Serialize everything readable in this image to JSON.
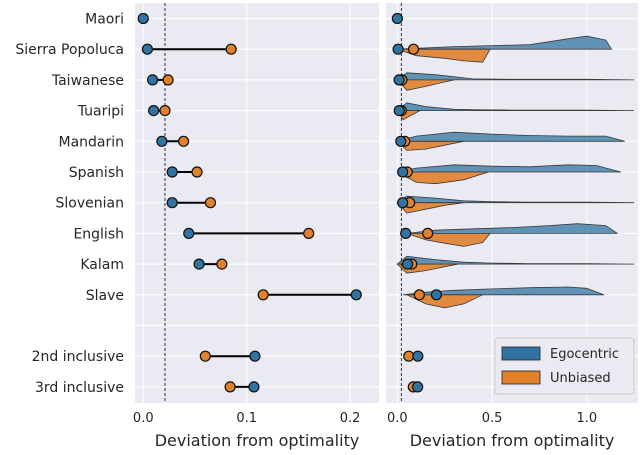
{
  "chart_data": [
    {
      "type": "dumbbell",
      "categories": [
        "Maori",
        "Sierra Popoluca",
        "Taiwanese",
        "Tuaripi",
        "Mandarin",
        "Spanish",
        "Slovenian",
        "English",
        "Kalam",
        "Slave",
        "",
        "2nd inclusive",
        "3rd inclusive"
      ],
      "series": [
        {
          "name": "Egocentric",
          "color": "#3274a1",
          "values": [
            0.0,
            0.004,
            0.009,
            0.01,
            0.018,
            0.028,
            0.028,
            0.044,
            0.054,
            0.206,
            null,
            0.108,
            0.107
          ]
        },
        {
          "name": "Unbiased",
          "color": "#e1812c",
          "values": [
            null,
            0.085,
            0.024,
            0.021,
            0.039,
            0.052,
            0.065,
            0.16,
            0.076,
            0.116,
            null,
            0.06,
            0.084
          ]
        }
      ],
      "reference_line": 0.021,
      "xlim": [
        -0.008,
        0.228
      ],
      "xticks": [
        "0.0",
        "0.1",
        "0.2"
      ],
      "xtick_values": [
        0.0,
        0.1,
        0.2
      ],
      "xlabel": "Deviation from optimality",
      "grid": true
    },
    {
      "type": "violin",
      "categories": [
        "Maori",
        "Sierra Popoluca",
        "Taiwanese",
        "Tuaripi",
        "Mandarin",
        "Spanish",
        "Slovenian",
        "English",
        "Kalam",
        "Slave",
        "",
        "2nd inclusive",
        "3rd inclusive"
      ],
      "series": [
        {
          "name": "Egocentric",
          "color": "#3274a1",
          "markers": [
            0.0,
            0.004,
            0.009,
            0.01,
            0.018,
            0.028,
            0.028,
            0.044,
            0.054,
            0.206,
            null,
            0.108,
            0.107
          ],
          "violins": [
            null,
            {
              "x": [
                0.0,
                0.3,
                0.5,
                0.7,
                0.9,
                1.0,
                1.1,
                1.13
              ],
              "density": [
                0.0,
                0.2,
                0.28,
                0.35,
                0.8,
                1.0,
                0.7,
                0.0
              ]
            },
            {
              "x": [
                0.0,
                0.05,
                0.2,
                0.4,
                0.6,
                0.8,
                1.0,
                1.25
              ],
              "density": [
                0.0,
                0.55,
                0.4,
                0.08,
                0.05,
                0.05,
                0.05,
                0.0
              ]
            },
            {
              "x": [
                0.0,
                0.05,
                0.15,
                0.3,
                0.42,
                0.6,
                1.0,
                1.25
              ],
              "density": [
                0.0,
                0.6,
                0.3,
                0.1,
                0.06,
                0.04,
                0.03,
                0.0
              ]
            },
            {
              "x": [
                0.0,
                0.1,
                0.3,
                0.5,
                0.7,
                0.9,
                1.1,
                1.2
              ],
              "density": [
                0.0,
                0.4,
                0.7,
                0.55,
                0.45,
                0.4,
                0.4,
                0.0
              ]
            },
            {
              "x": [
                0.0,
                0.1,
                0.3,
                0.5,
                0.7,
                0.9,
                1.05,
                1.18
              ],
              "density": [
                0.0,
                0.3,
                0.55,
                0.45,
                0.4,
                0.55,
                0.5,
                0.0
              ]
            },
            {
              "x": [
                0.0,
                0.05,
                0.2,
                0.35,
                0.5,
                0.7,
                1.0,
                1.25
              ],
              "density": [
                0.0,
                0.5,
                0.35,
                0.15,
                0.08,
                0.04,
                0.04,
                0.0
              ]
            },
            {
              "x": [
                0.05,
                0.2,
                0.4,
                0.6,
                0.8,
                0.95,
                1.1,
                1.16
              ],
              "density": [
                0.0,
                0.25,
                0.35,
                0.45,
                0.6,
                0.75,
                0.6,
                0.0
              ]
            },
            {
              "x": [
                0.0,
                0.05,
                0.2,
                0.35,
                0.5,
                0.7,
                1.0,
                1.25
              ],
              "density": [
                0.0,
                0.6,
                0.35,
                0.15,
                0.08,
                0.04,
                0.03,
                0.0
              ]
            },
            {
              "x": [
                0.03,
                0.15,
                0.3,
                0.5,
                0.7,
                0.9,
                1.0,
                1.09
              ],
              "density": [
                0.0,
                0.2,
                0.35,
                0.45,
                0.55,
                0.6,
                0.5,
                0.0
              ]
            },
            null,
            null,
            null
          ]
        },
        {
          "name": "Unbiased",
          "color": "#e1812c",
          "markers": [
            null,
            0.085,
            0.024,
            0.021,
            0.039,
            0.052,
            0.065,
            0.16,
            0.076,
            0.116,
            null,
            0.06,
            0.084
          ],
          "violins": [
            null,
            {
              "x": [
                0.0,
                0.1,
                0.25,
                0.35,
                0.45,
                0.49
              ],
              "density": [
                0.0,
                0.5,
                0.7,
                0.9,
                1.0,
                0.0
              ]
            },
            {
              "x": [
                0.0,
                0.05,
                0.15,
                0.25,
                0.3
              ],
              "density": [
                0.0,
                0.8,
                0.5,
                0.15,
                0.0
              ]
            },
            {
              "x": [
                0.0,
                0.03,
                0.08,
                0.12
              ],
              "density": [
                0.0,
                0.7,
                0.3,
                0.0
              ]
            },
            {
              "x": [
                0.0,
                0.05,
                0.15,
                0.25,
                0.35
              ],
              "density": [
                0.0,
                0.7,
                0.6,
                0.3,
                0.0
              ]
            },
            {
              "x": [
                0.0,
                0.1,
                0.2,
                0.35,
                0.48
              ],
              "density": [
                0.0,
                0.8,
                0.9,
                0.6,
                0.0
              ]
            },
            {
              "x": [
                0.0,
                0.05,
                0.15,
                0.25,
                0.35
              ],
              "density": [
                0.0,
                0.8,
                0.5,
                0.2,
                0.0
              ]
            },
            {
              "x": [
                0.05,
                0.15,
                0.25,
                0.35,
                0.45,
                0.49
              ],
              "density": [
                0.0,
                0.5,
                0.75,
                1.0,
                0.7,
                0.0
              ]
            },
            {
              "x": [
                0.0,
                0.05,
                0.15,
                0.25,
                0.32
              ],
              "density": [
                0.0,
                0.7,
                0.5,
                0.2,
                0.0
              ]
            },
            {
              "x": [
                0.05,
                0.15,
                0.25,
                0.35,
                0.45
              ],
              "density": [
                0.0,
                0.7,
                1.0,
                0.7,
                0.0
              ]
            },
            null,
            null,
            null
          ]
        }
      ],
      "reference_line": 0.021,
      "xlim": [
        -0.06,
        1.27
      ],
      "xticks": [
        "0.0",
        "0.5",
        "1.0"
      ],
      "xtick_values": [
        0.0,
        0.5,
        1.0
      ],
      "xlabel": "Deviation from optimality",
      "legend": {
        "placement": "lower-right",
        "entries": [
          "Egocentric",
          "Unbiased"
        ]
      },
      "grid": true
    }
  ]
}
